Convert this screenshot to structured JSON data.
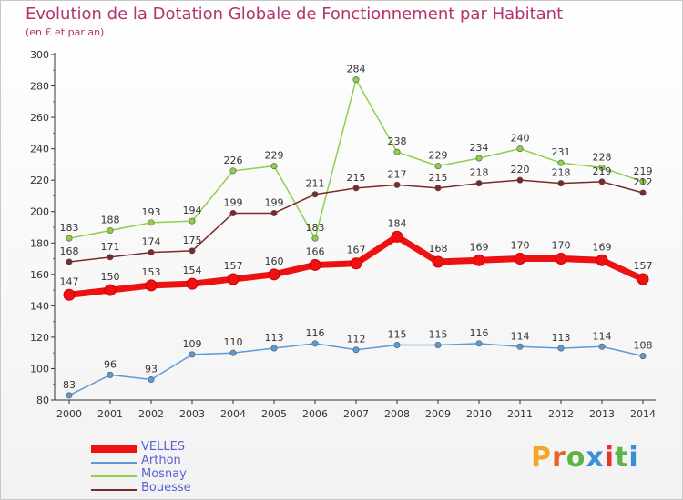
{
  "title": "Evolution de la Dotation Globale de Fonctionnement par Habitant",
  "subtitle": "(en € et par an)",
  "brand": {
    "letters": [
      "P",
      "r",
      "o",
      "x",
      "i",
      "t",
      "i"
    ],
    "colors": [
      "#f5a623",
      "#e8632a",
      "#5fb246",
      "#3a8fd8",
      "#e8322a",
      "#5fb246",
      "#3a8fd8"
    ]
  },
  "chart_data": {
    "type": "line",
    "title": "Evolution de la Dotation Globale de Fonctionnement par Habitant",
    "subtitle": "(en € et par an)",
    "x": [
      2000,
      2001,
      2002,
      2003,
      2004,
      2005,
      2006,
      2007,
      2008,
      2009,
      2010,
      2011,
      2012,
      2013,
      2014
    ],
    "ylim": [
      80,
      300
    ],
    "yticks": [
      80,
      100,
      120,
      140,
      160,
      180,
      200,
      220,
      240,
      260,
      280,
      300
    ],
    "grid": false,
    "legend_position": "bottom-left",
    "series": [
      {
        "name": "VELLES",
        "color": "#ee1111",
        "emphasis": true,
        "values": [
          147,
          150,
          153,
          154,
          157,
          160,
          166,
          167,
          184,
          168,
          169,
          170,
          170,
          169,
          157
        ]
      },
      {
        "name": "Arthon",
        "color": "#5b9bd5",
        "emphasis": false,
        "values": [
          83,
          96,
          93,
          109,
          110,
          113,
          116,
          112,
          115,
          115,
          116,
          114,
          113,
          114,
          108
        ]
      },
      {
        "name": "Mosnay",
        "color": "#8fd04a",
        "emphasis": false,
        "values": [
          183,
          188,
          193,
          194,
          226,
          229,
          183,
          284,
          238,
          229,
          234,
          240,
          231,
          228,
          219
        ]
      },
      {
        "name": "Bouesse",
        "color": "#7a2a2a",
        "emphasis": false,
        "values": [
          168,
          171,
          174,
          175,
          199,
          199,
          211,
          215,
          217,
          215,
          218,
          220,
          218,
          219,
          212
        ]
      }
    ]
  }
}
